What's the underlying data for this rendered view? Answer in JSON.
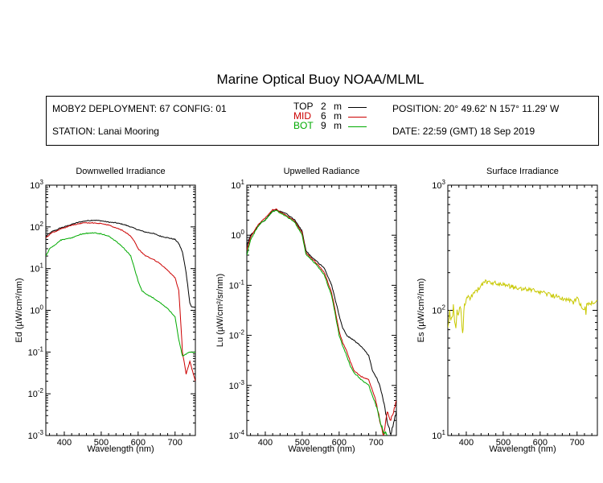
{
  "title": "Marine Optical Buoy NOAA/MLML",
  "info": {
    "deployment": "MOBY2 DEPLOYMENT: 67 CONFIG: 01",
    "station": "STATION: Lanai Mooring",
    "position": "POSITION: 20° 49.62' N   157° 11.29' W",
    "date": "DATE: 22:59 (GMT) 18 Sep 2019"
  },
  "legend": [
    {
      "name": "TOP",
      "depth": "2",
      "unit": "m",
      "color": "#000000"
    },
    {
      "name": "MID",
      "depth": "6",
      "unit": "m",
      "color": "#cc0000"
    },
    {
      "name": "BOT",
      "depth": "9",
      "unit": "m",
      "color": "#00aa00"
    }
  ],
  "chart_data": [
    {
      "type": "line",
      "title": "Downwelled Irradiance",
      "xlabel": "Wavelength (nm)",
      "ylabel": "Ed (µW/cm²/nm)",
      "yscale": "log",
      "xlim": [
        350,
        755
      ],
      "ylim": [
        0.001,
        1000
      ],
      "xticks": [
        400,
        500,
        600,
        700
      ],
      "yticks": [
        {
          "v": 0.001,
          "b": "10",
          "e": "-3"
        },
        {
          "v": 0.01,
          "b": "10",
          "e": "-2"
        },
        {
          "v": 0.1,
          "b": "10",
          "e": "-1"
        },
        {
          "v": 1,
          "b": "10",
          "e": "0"
        },
        {
          "v": 10,
          "b": "10",
          "e": "1"
        },
        {
          "v": 100,
          "b": "10",
          "e": "2"
        },
        {
          "v": 1000,
          "b": "10",
          "e": "3"
        }
      ],
      "series": [
        {
          "name": "TOP",
          "color": "#000000",
          "x": [
            350,
            360,
            370,
            380,
            390,
            400,
            420,
            440,
            460,
            480,
            500,
            520,
            540,
            560,
            580,
            600,
            620,
            640,
            660,
            680,
            700,
            710,
            720,
            730,
            740,
            745,
            755
          ],
          "y": [
            60,
            70,
            80,
            85,
            95,
            100,
            115,
            130,
            140,
            145,
            140,
            130,
            125,
            115,
            100,
            85,
            75,
            70,
            60,
            55,
            50,
            40,
            25,
            8,
            1.5,
            1.2,
            1.2
          ]
        },
        {
          "name": "MID",
          "color": "#cc0000",
          "x": [
            350,
            360,
            370,
            380,
            390,
            400,
            420,
            440,
            460,
            480,
            500,
            520,
            540,
            560,
            580,
            590,
            600,
            620,
            640,
            660,
            680,
            700,
            710,
            715,
            720,
            730,
            740,
            755
          ],
          "y": [
            55,
            65,
            75,
            80,
            90,
            95,
            110,
            120,
            125,
            125,
            120,
            110,
            95,
            80,
            60,
            45,
            30,
            20,
            17,
            13,
            9,
            6,
            3,
            0.6,
            0.1,
            0.03,
            0.06,
            0.02
          ]
        },
        {
          "name": "BOT",
          "color": "#00aa00",
          "x": [
            350,
            360,
            370,
            380,
            390,
            400,
            420,
            440,
            460,
            480,
            500,
            520,
            540,
            560,
            580,
            590,
            600,
            610,
            620,
            640,
            660,
            680,
            700,
            710,
            720,
            730,
            740,
            755
          ],
          "y": [
            20,
            30,
            35,
            40,
            48,
            50,
            55,
            65,
            70,
            72,
            68,
            60,
            45,
            32,
            20,
            10,
            5,
            3,
            2.5,
            2,
            1.5,
            1.1,
            0.7,
            0.2,
            0.08,
            0.09,
            0.1,
            0.1
          ]
        }
      ]
    },
    {
      "type": "line",
      "title": "Upwelled Radiance",
      "xlabel": "Wavelength (nm)",
      "ylabel": "Lu (µW/cm²/sr/nm)",
      "yscale": "log",
      "xlim": [
        350,
        755
      ],
      "ylim": [
        0.0001,
        10
      ],
      "xticks": [
        400,
        500,
        600,
        700
      ],
      "yticks": [
        {
          "v": 0.0001,
          "b": "10",
          "e": "-4"
        },
        {
          "v": 0.001,
          "b": "10",
          "e": "-3"
        },
        {
          "v": 0.01,
          "b": "10",
          "e": "-2"
        },
        {
          "v": 0.1,
          "b": "10",
          "e": "-1"
        },
        {
          "v": 1,
          "b": "10",
          "e": "0"
        },
        {
          "v": 10,
          "b": "10",
          "e": "1"
        }
      ],
      "series": [
        {
          "name": "TOP",
          "color": "#000000",
          "x": [
            350,
            360,
            370,
            380,
            390,
            400,
            410,
            420,
            430,
            440,
            460,
            480,
            500,
            510,
            520,
            540,
            560,
            580,
            590,
            600,
            610,
            620,
            640,
            660,
            680,
            690,
            700,
            710,
            720,
            730,
            740,
            755
          ],
          "y": [
            0.6,
            1.0,
            1.2,
            1.5,
            1.8,
            2.0,
            2.5,
            3.0,
            3.2,
            3.0,
            2.6,
            2.0,
            1.2,
            0.5,
            0.4,
            0.3,
            0.22,
            0.1,
            0.05,
            0.025,
            0.014,
            0.01,
            0.008,
            0.006,
            0.004,
            0.002,
            0.0015,
            0.001,
            0.0005,
            0.0002,
            0.0001,
            0.0003
          ]
        },
        {
          "name": "MID",
          "color": "#cc0000",
          "x": [
            350,
            360,
            370,
            380,
            390,
            400,
            410,
            420,
            430,
            440,
            460,
            480,
            500,
            510,
            520,
            540,
            560,
            580,
            590,
            600,
            610,
            620,
            630,
            640,
            660,
            680,
            700,
            710,
            720,
            730,
            740,
            755
          ],
          "y": [
            0.5,
            0.9,
            1.2,
            1.6,
            1.9,
            2.2,
            2.7,
            3.2,
            3.3,
            2.9,
            2.4,
            1.9,
            1.1,
            0.45,
            0.38,
            0.27,
            0.18,
            0.07,
            0.03,
            0.012,
            0.007,
            0.005,
            0.003,
            0.002,
            0.0015,
            0.0013,
            0.0005,
            0.0002,
            0.0001,
            0.0003,
            0.0002,
            0.0005
          ]
        },
        {
          "name": "BOT",
          "color": "#00aa00",
          "x": [
            350,
            360,
            370,
            380,
            390,
            400,
            410,
            420,
            430,
            440,
            460,
            480,
            500,
            510,
            520,
            540,
            560,
            580,
            590,
            600,
            610,
            620,
            630,
            640,
            660,
            680,
            700,
            710,
            720,
            730
          ],
          "y": [
            0.4,
            0.8,
            1.1,
            1.5,
            1.8,
            2.0,
            2.5,
            3.0,
            3.1,
            2.8,
            2.3,
            1.8,
            1.0,
            0.42,
            0.35,
            0.25,
            0.16,
            0.06,
            0.025,
            0.01,
            0.006,
            0.004,
            0.0025,
            0.0018,
            0.0013,
            0.001,
            0.0004,
            0.0002,
            0.00012,
            0.0001
          ]
        }
      ]
    },
    {
      "type": "line",
      "title": "Surface Irradiance",
      "xlabel": "Wavelength (nm)",
      "ylabel": "Es (µW/cm²/nm)",
      "yscale": "log",
      "xlim": [
        350,
        755
      ],
      "ylim": [
        10,
        1000
      ],
      "xticks": [
        400,
        500,
        600,
        700
      ],
      "yticks": [
        {
          "v": 10,
          "b": "10",
          "e": "1"
        },
        {
          "v": 100,
          "b": "10",
          "e": "2"
        },
        {
          "v": 1000,
          "b": "10",
          "e": "3"
        }
      ],
      "series": [
        {
          "name": "Es",
          "color": "#c8c800",
          "x": [
            350,
            355,
            360,
            365,
            370,
            375,
            380,
            385,
            390,
            395,
            400,
            405,
            410,
            420,
            430,
            440,
            450,
            460,
            480,
            500,
            520,
            540,
            560,
            580,
            600,
            620,
            640,
            660,
            680,
            690,
            700,
            710,
            720,
            730,
            740,
            755
          ],
          "y": [
            75,
            95,
            85,
            110,
            70,
            100,
            90,
            105,
            60,
            110,
            120,
            130,
            125,
            140,
            145,
            155,
            170,
            165,
            165,
            160,
            155,
            150,
            148,
            145,
            140,
            135,
            130,
            125,
            120,
            115,
            125,
            110,
            95,
            110,
            115,
            120
          ]
        }
      ]
    }
  ]
}
